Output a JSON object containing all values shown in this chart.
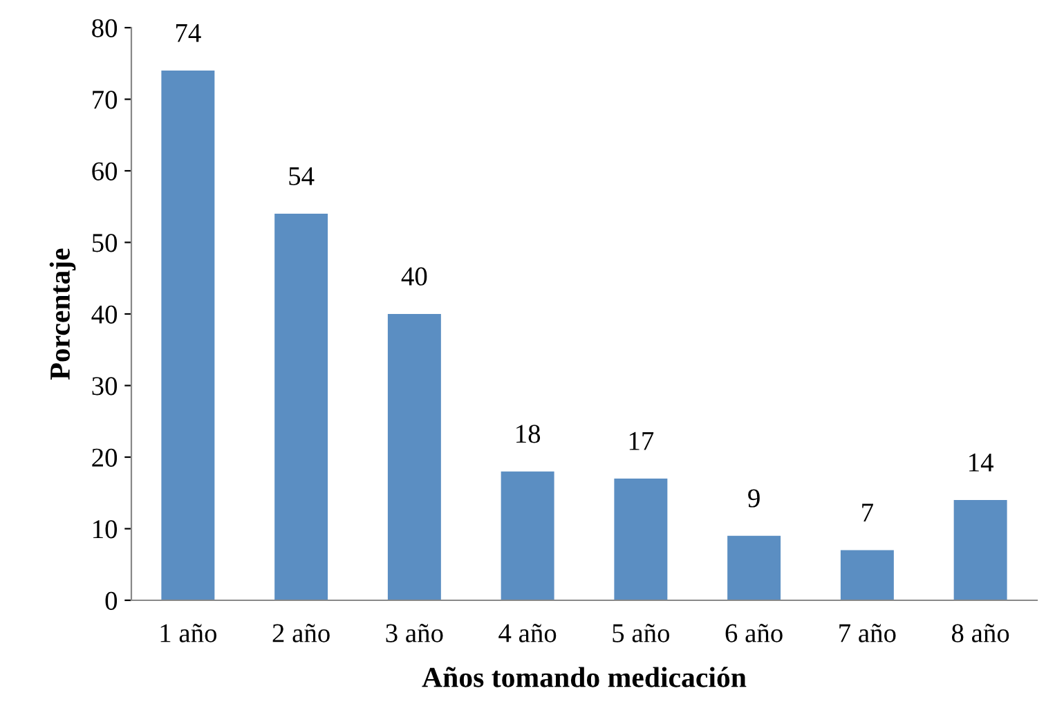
{
  "chart_data": {
    "type": "bar",
    "xlabel": "Años tomando medicación",
    "ylabel": "Porcentaje",
    "categories": [
      "1 año",
      "2 año",
      "3 año",
      "4 año",
      "5 año",
      "6 año",
      "7 año",
      "8 año"
    ],
    "values": [
      74,
      54,
      40,
      18,
      17,
      9,
      7,
      14
    ],
    "color": "#5b8ec2",
    "ylim": [
      0,
      80
    ],
    "yticks": [
      0,
      10,
      20,
      30,
      40,
      50,
      60,
      70,
      80
    ],
    "grid": false,
    "legend": false,
    "data_labels": true
  }
}
